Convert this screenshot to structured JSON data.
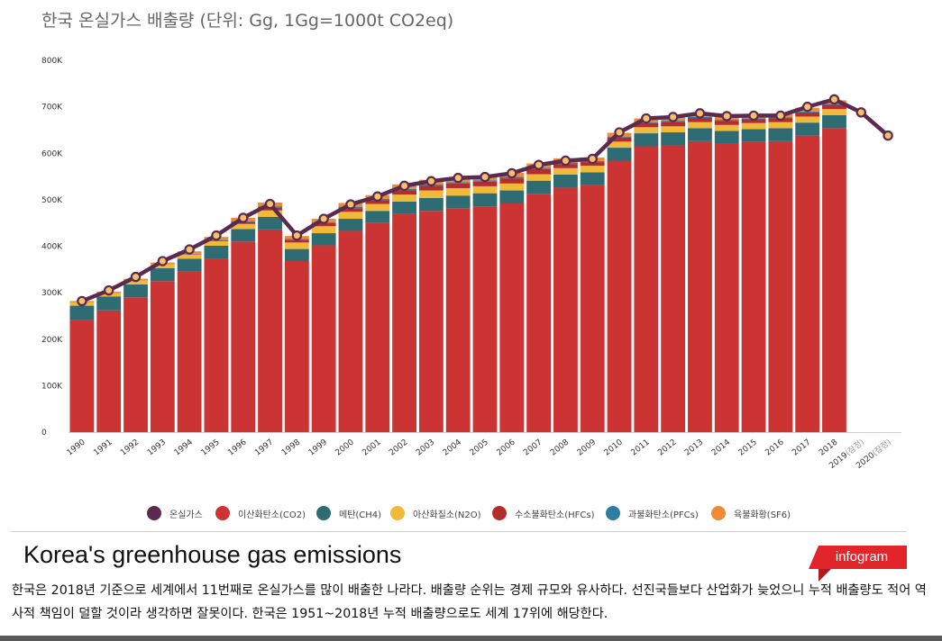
{
  "chart_data": {
    "type": "bar",
    "title": "한국 온실가스 배출량 (단위: Gg, 1Gg=1000t CO2eq)",
    "ylim": [
      0,
      800000
    ],
    "y_ticks": [
      0,
      100000,
      200000,
      300000,
      400000,
      500000,
      600000,
      700000,
      800000
    ],
    "y_tick_labels": [
      "0",
      "100K",
      "200K",
      "300K",
      "400K",
      "500K",
      "600K",
      "700K",
      "800K"
    ],
    "grid": false,
    "legend_placement": "bottom",
    "stacked": true,
    "categories": [
      "1990",
      "1991",
      "1992",
      "1993",
      "1994",
      "1995",
      "1996",
      "1997",
      "1998",
      "1999",
      "2000",
      "2001",
      "2002",
      "2003",
      "2004",
      "2005",
      "2006",
      "2007",
      "2008",
      "2009",
      "2010",
      "2011",
      "2012",
      "2013",
      "2014",
      "2015",
      "2016",
      "2017",
      "2018",
      "2019(잠정)",
      "2020(잠정)"
    ],
    "series": [
      {
        "name": "이산화탄소(CO2)",
        "color": "#cc3333",
        "type": "bar",
        "values": [
          241000,
          262000,
          290000,
          325000,
          345000,
          373000,
          410000,
          436000,
          368000,
          402000,
          433000,
          450000,
          469000,
          476000,
          481000,
          486000,
          492000,
          513000,
          526000,
          531000,
          584000,
          615000,
          617000,
          626000,
          620000,
          624000,
          626000,
          638000,
          654000,
          null,
          null
        ]
      },
      {
        "name": "메탄(CH4)",
        "color": "#2e6b73",
        "type": "bar",
        "values": [
          31000,
          30000,
          28000,
          28000,
          28000,
          28000,
          27000,
          27000,
          26000,
          26000,
          26000,
          26000,
          27000,
          28000,
          28000,
          28000,
          28000,
          28000,
          28000,
          28000,
          28000,
          28000,
          28000,
          28000,
          28000,
          28000,
          28000,
          28000,
          28000,
          null,
          null
        ]
      },
      {
        "name": "아산화질소(N2O)",
        "color": "#f0b93a",
        "type": "bar",
        "values": [
          7000,
          7000,
          8000,
          8000,
          9000,
          10000,
          11000,
          14000,
          14000,
          15000,
          15000,
          15000,
          15000,
          16000,
          16000,
          15000,
          15000,
          14000,
          14000,
          14000,
          13000,
          13000,
          13000,
          13000,
          13000,
          13000,
          13000,
          13000,
          13000,
          null,
          null
        ]
      },
      {
        "name": "수소불화탄소(HFCs)",
        "color": "#b32d2d",
        "type": "bar",
        "values": [
          0,
          0,
          0,
          0,
          1000,
          2000,
          4000,
          6000,
          6000,
          7000,
          8000,
          8000,
          9000,
          10000,
          10000,
          10000,
          11000,
          11000,
          9000,
          8000,
          9000,
          9000,
          10000,
          9000,
          9000,
          8000,
          8000,
          9000,
          9000,
          null,
          null
        ]
      },
      {
        "name": "과불화탄소(PFCs)",
        "color": "#2c7fa0",
        "type": "bar",
        "values": [
          0,
          0,
          0,
          0,
          1000,
          1000,
          2000,
          3000,
          2000,
          2000,
          3000,
          3000,
          3000,
          3000,
          3000,
          3000,
          3000,
          3000,
          3000,
          2000,
          2000,
          2000,
          2000,
          2000,
          2000,
          2000,
          2000,
          2000,
          2000,
          null,
          null
        ]
      },
      {
        "name": "육불화황(SF6)",
        "color": "#f08a35",
        "type": "bar",
        "values": [
          3000,
          3000,
          4000,
          4000,
          5000,
          6000,
          7000,
          8000,
          6000,
          7000,
          8000,
          8000,
          10000,
          10000,
          10000,
          10000,
          9000,
          9000,
          9000,
          8000,
          8000,
          8000,
          8000,
          8000,
          8000,
          8000,
          8000,
          8000,
          8000,
          null,
          null
        ]
      },
      {
        "name": "온실가스",
        "color": "#5a2a50",
        "type": "line",
        "values": [
          282000,
          305000,
          334000,
          368000,
          393000,
          423000,
          461000,
          491000,
          423000,
          459000,
          490000,
          507000,
          530000,
          540000,
          547000,
          549000,
          557000,
          575000,
          584000,
          588000,
          645000,
          675000,
          678000,
          686000,
          680000,
          681000,
          681000,
          700000,
          716000,
          688000,
          638000
        ]
      }
    ],
    "legend_order": [
      "온실가스",
      "이산화탄소(CO2)",
      "메탄(CH4)",
      "아산화질소(N2O)",
      "수소불화탄소(HFCs)",
      "과불화탄소(PFCs)",
      "육불화황(SF6)"
    ]
  },
  "footer": {
    "english_title": "Korea's greenhouse gas emissions",
    "badge": "infogram",
    "description": "한국은 2018년 기준으로 세계에서 11번째로 온실가스를 많이 배출한 나라다. 배출량 순위는 경제 규모와 유사하다. 선진국들보다 산업화가 늦었으니 누적 배출량도 적어 역사적 책임이 덜할 것이라 생각하면 잘못이다. 한국은 1951~2018년 누적 배출량으로도 세계 17위에 해당한다."
  },
  "colors": {
    "line": "#5a2a50",
    "marker_fill": "#f5c067",
    "badge": "#e2252b"
  }
}
